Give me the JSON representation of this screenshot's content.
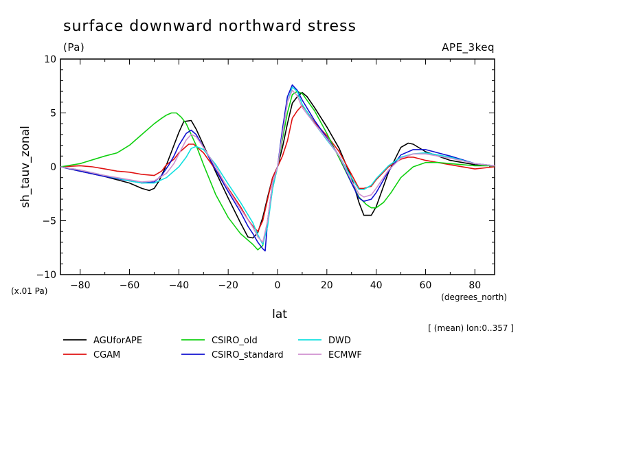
{
  "chart_data": {
    "type": "line",
    "title": "surface downward northward stress",
    "units": "(Pa)",
    "experiment": "APE_3keq",
    "ylabel": "sh_tauv_zonal",
    "xlabel": "lat",
    "x_units": "(degrees_north)",
    "y_scale_note": "(x.01 Pa)",
    "averaging_note": "[ (mean) lon:0..357 ]",
    "xlim": [
      -88,
      88
    ],
    "ylim": [
      -10,
      10
    ],
    "x_ticks": [
      -80,
      -60,
      -40,
      -20,
      0,
      20,
      40,
      60,
      80
    ],
    "y_ticks": [
      -10,
      -5,
      0,
      5,
      10
    ],
    "x_tick_labels": [
      "−80",
      "−60",
      "−40",
      "−20",
      "0",
      "20",
      "40",
      "60",
      "80"
    ],
    "y_tick_labels": [
      "−10",
      "−5",
      "0",
      "5",
      "10"
    ],
    "grid": false,
    "series": [
      {
        "name": "AGUforAPE",
        "color": "#000000",
        "x": [
          -88,
          -80,
          -70,
          -60,
          -55,
          -52,
          -50,
          -48,
          -45,
          -42,
          -40,
          -38,
          -35,
          -33,
          -30,
          -25,
          -20,
          -15,
          -12,
          -10,
          -8,
          -6,
          -4,
          -2,
          0,
          2,
          4,
          6,
          8,
          10,
          12,
          15,
          20,
          25,
          30,
          33,
          35,
          38,
          40,
          45,
          50,
          53,
          55,
          60,
          65,
          70,
          80,
          88
        ],
        "y": [
          0,
          -0.4,
          -0.9,
          -1.5,
          -2.0,
          -2.2,
          -2.0,
          -1.3,
          0.2,
          2.0,
          3.2,
          4.2,
          4.3,
          3.5,
          2.0,
          -0.5,
          -2.9,
          -5.2,
          -6.5,
          -6.6,
          -6.1,
          -4.7,
          -2.8,
          -1.0,
          0,
          1.8,
          4.0,
          5.9,
          6.5,
          6.9,
          6.5,
          5.5,
          3.7,
          1.7,
          -1.0,
          -3.3,
          -4.5,
          -4.5,
          -3.7,
          -0.5,
          1.8,
          2.2,
          2.1,
          1.4,
          1.0,
          0.6,
          0.2,
          0.1
        ]
      },
      {
        "name": "CGAM",
        "color": "#e01010",
        "x": [
          -88,
          -80,
          -75,
          -70,
          -65,
          -60,
          -55,
          -50,
          -47,
          -45,
          -42,
          -40,
          -36,
          -34,
          -32,
          -30,
          -25,
          -20,
          -15,
          -12,
          -10,
          -8,
          -6,
          -4,
          -2,
          0,
          2,
          4,
          6,
          8,
          10,
          12,
          15,
          20,
          25,
          30,
          33,
          35,
          38,
          40,
          45,
          50,
          53,
          55,
          60,
          65,
          70,
          80,
          88
        ],
        "y": [
          0,
          0.1,
          0.0,
          -0.2,
          -0.4,
          -0.5,
          -0.7,
          -0.8,
          -0.4,
          0.2,
          0.7,
          1.3,
          2.1,
          2.1,
          1.7,
          1.3,
          -0.3,
          -2.0,
          -3.7,
          -4.9,
          -5.5,
          -6.0,
          -5.0,
          -3.0,
          -1.0,
          0,
          1.0,
          2.4,
          4.5,
          5.2,
          5.7,
          5.1,
          4.1,
          2.9,
          1.4,
          -0.7,
          -2.0,
          -2.0,
          -1.8,
          -1.2,
          0.0,
          0.7,
          0.9,
          0.9,
          0.6,
          0.4,
          0.2,
          -0.2,
          0.0
        ]
      },
      {
        "name": "CSIRO_old",
        "color": "#10d010",
        "x": [
          -88,
          -80,
          -70,
          -65,
          -60,
          -55,
          -50,
          -47,
          -45,
          -43,
          -41,
          -39,
          -37,
          -35,
          -33,
          -30,
          -25,
          -20,
          -15,
          -10,
          -8,
          -6,
          -4,
          -2,
          0,
          2,
          4,
          6,
          8,
          10,
          15,
          20,
          25,
          30,
          33,
          36,
          38,
          40,
          43,
          46,
          50,
          55,
          60,
          65,
          70,
          80,
          88
        ],
        "y": [
          0,
          0.3,
          1.0,
          1.3,
          2.0,
          3.0,
          4.0,
          4.5,
          4.8,
          5.0,
          5.0,
          4.6,
          4.0,
          3.0,
          2.0,
          0.2,
          -2.6,
          -4.7,
          -6.2,
          -7.2,
          -7.7,
          -7.3,
          -5.0,
          -2.0,
          0,
          2.6,
          5.0,
          6.7,
          7.0,
          6.8,
          5.2,
          3.1,
          0.8,
          -1.5,
          -2.8,
          -3.5,
          -3.8,
          -3.8,
          -3.3,
          -2.4,
          -1.0,
          0.0,
          0.4,
          0.4,
          0.3,
          0.1,
          0.1
        ]
      },
      {
        "name": "CSIRO_standard",
        "color": "#1010d0",
        "x": [
          -88,
          -80,
          -70,
          -60,
          -55,
          -50,
          -47,
          -44,
          -42,
          -40,
          -37,
          -35,
          -33,
          -30,
          -25,
          -20,
          -15,
          -12,
          -10,
          -8,
          -6,
          -5,
          -4,
          -2,
          0,
          2,
          4,
          6,
          8,
          10,
          15,
          20,
          25,
          30,
          33,
          35,
          38,
          40,
          45,
          50,
          55,
          60,
          65,
          70,
          80,
          88
        ],
        "y": [
          0,
          -0.4,
          -0.9,
          -1.3,
          -1.5,
          -1.4,
          -0.8,
          0.2,
          1.0,
          2.0,
          3.1,
          3.4,
          3.0,
          1.8,
          -0.3,
          -2.3,
          -4.2,
          -5.5,
          -6.2,
          -7.0,
          -7.6,
          -7.8,
          -5.0,
          -1.5,
          0,
          3.5,
          6.5,
          7.6,
          7.1,
          6.2,
          4.3,
          2.7,
          1.0,
          -1.5,
          -2.9,
          -3.2,
          -3.0,
          -2.4,
          -0.4,
          1.1,
          1.6,
          1.6,
          1.3,
          1.0,
          0.3,
          0.1
        ]
      },
      {
        "name": "DWD",
        "color": "#10e0e0",
        "x": [
          -88,
          -80,
          -70,
          -60,
          -55,
          -50,
          -45,
          -40,
          -37,
          -35,
          -33,
          -30,
          -25,
          -20,
          -15,
          -10,
          -8,
          -6,
          -4,
          -2,
          0,
          2,
          4,
          6,
          8,
          10,
          15,
          20,
          25,
          30,
          33,
          35,
          38,
          40,
          45,
          50,
          55,
          60,
          65,
          70,
          80,
          88
        ],
        "y": [
          0,
          -0.3,
          -0.8,
          -1.3,
          -1.5,
          -1.5,
          -1.0,
          0.0,
          0.9,
          1.7,
          1.9,
          1.6,
          0.2,
          -1.6,
          -3.3,
          -5.2,
          -6.3,
          -7.2,
          -5.5,
          -2.0,
          0,
          3.0,
          6.0,
          7.4,
          7.0,
          5.8,
          4.0,
          2.5,
          1.0,
          -1.0,
          -2.1,
          -2.1,
          -1.7,
          -1.1,
          0.1,
          0.9,
          1.2,
          1.3,
          1.1,
          0.9,
          0.3,
          0.1
        ]
      },
      {
        "name": "ECMWF",
        "color": "#d090d0",
        "x": [
          -88,
          -80,
          -70,
          -60,
          -55,
          -50,
          -45,
          -42,
          -40,
          -37,
          -35,
          -33,
          -30,
          -25,
          -20,
          -15,
          -10,
          -8,
          -6,
          -4,
          -2,
          0,
          2,
          4,
          6,
          8,
          10,
          15,
          20,
          25,
          30,
          33,
          35,
          38,
          40,
          45,
          50,
          55,
          60,
          65,
          70,
          80,
          88
        ],
        "y": [
          0,
          -0.3,
          -0.8,
          -1.2,
          -1.4,
          -1.3,
          -0.6,
          0.3,
          1.2,
          2.5,
          3.0,
          2.8,
          1.8,
          0.0,
          -2.1,
          -3.9,
          -5.6,
          -6.5,
          -7.0,
          -5.0,
          -1.5,
          0,
          3.0,
          6.0,
          7.1,
          6.6,
          5.5,
          4.0,
          2.6,
          1.0,
          -1.3,
          -2.5,
          -2.8,
          -2.6,
          -2.0,
          -0.3,
          0.8,
          1.2,
          1.2,
          1.0,
          0.8,
          0.3,
          0.1
        ]
      }
    ]
  }
}
